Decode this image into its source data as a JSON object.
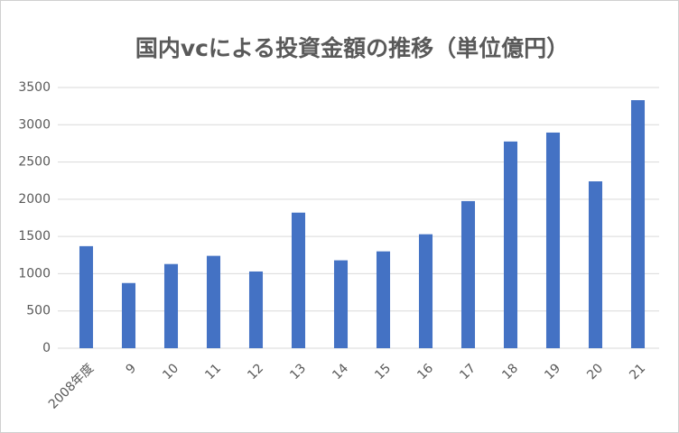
{
  "chart_data": {
    "type": "bar",
    "title": "国内vcによる投資金額の推移（単位億円）",
    "categories": [
      "2008年度",
      "9",
      "10",
      "11",
      "12",
      "13",
      "14",
      "15",
      "16",
      "17",
      "18",
      "19",
      "20",
      "21"
    ],
    "values": [
      1370,
      875,
      1130,
      1240,
      1030,
      1820,
      1180,
      1300,
      1530,
      1975,
      2775,
      2895,
      2240,
      3330
    ],
    "color": "#4472c4",
    "ylim": [
      0,
      3500
    ],
    "yticks": [
      0,
      500,
      1000,
      1500,
      2000,
      2500,
      3000,
      3500
    ],
    "grid": true
  }
}
